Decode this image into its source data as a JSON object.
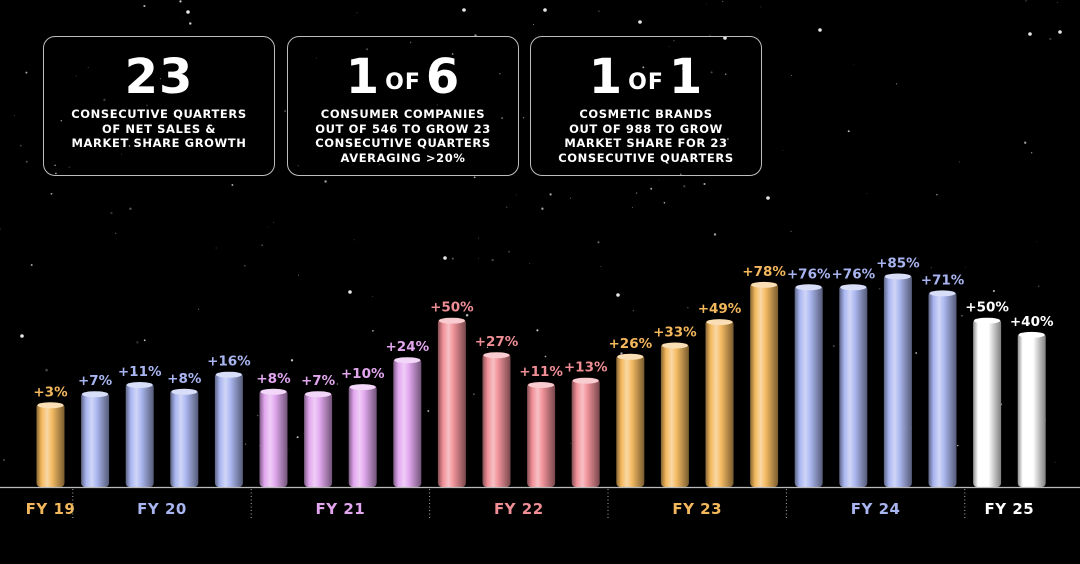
{
  "stats": [
    {
      "big": "23",
      "big_mid": "",
      "big_end": "",
      "lines": [
        "CONSECUTIVE QUARTERS",
        "OF NET SALES &",
        "MARKET SHARE GROWTH"
      ]
    },
    {
      "big": "1",
      "big_mid": "OF",
      "big_end": "6",
      "lines": [
        "CONSUMER COMPANIES",
        "OUT OF 546 TO GROW 23",
        "CONSECUTIVE QUARTERS",
        "AVERAGING >20%"
      ]
    },
    {
      "big": "1",
      "big_mid": "OF",
      "big_end": "1",
      "lines": [
        "COSMETIC BRANDS",
        "OUT OF 988 TO GROW",
        "MARKET SHARE FOR 23",
        "CONSECUTIVE QUARTERS"
      ]
    }
  ],
  "chart_data": {
    "type": "bar",
    "grid": false,
    "legend": "none",
    "groups": [
      {
        "label": "FY 19",
        "color": "#f4b85c",
        "values": [
          3
        ],
        "labels": [
          "+3%"
        ]
      },
      {
        "label": "FY 20",
        "color": "#a9b5f0",
        "values": [
          7,
          11,
          8,
          16
        ],
        "labels": [
          "+7%",
          "+11%",
          "+8%",
          "+16%"
        ]
      },
      {
        "label": "FY 21",
        "color": "#e2a6ef",
        "values": [
          8,
          7,
          10,
          24
        ],
        "labels": [
          "+8%",
          "+7%",
          "+10%",
          "+24%"
        ]
      },
      {
        "label": "FY 22",
        "color": "#f08e96",
        "values": [
          50,
          27,
          11,
          13
        ],
        "labels": [
          "+50%",
          "+27%",
          "+11%",
          "+13%"
        ]
      },
      {
        "label": "FY 23",
        "color": "#f4b85c",
        "values": [
          26,
          33,
          49,
          78
        ],
        "labels": [
          "+26%",
          "+33%",
          "+49%",
          "+78%"
        ]
      },
      {
        "label": "FY 24",
        "color": "#a9b5f0",
        "values": [
          76,
          76,
          85,
          71
        ],
        "labels": [
          "+76%",
          "+76%",
          "+85%",
          "+71%"
        ]
      },
      {
        "label": "FY 25",
        "color": "#ffffff",
        "values": [
          50,
          40
        ],
        "labels": [
          "+50%",
          "+40%"
        ]
      }
    ]
  }
}
